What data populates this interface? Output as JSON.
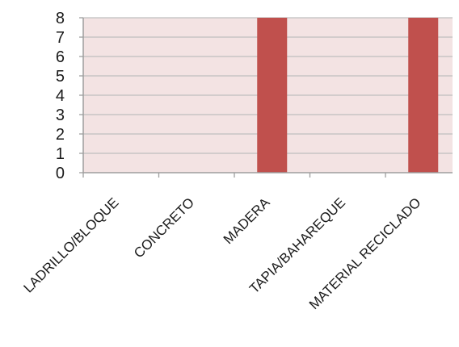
{
  "chart_data": {
    "type": "bar",
    "categories": [
      "LADRILLO/BLOQUE",
      "CONCRETO",
      "MADERA",
      "TAPIA/BAHAREQUE",
      "MATERIAL RECICLADO"
    ],
    "values": [
      0,
      0,
      8,
      0,
      8
    ],
    "ylim": [
      0,
      8
    ],
    "yticks": [
      "0",
      "1",
      "2",
      "3",
      "4",
      "5",
      "6",
      "7",
      "8"
    ],
    "grid": true,
    "legend": "none",
    "colors": {
      "plot_background": "#f3e3e3",
      "bar": "#c0504d",
      "gridline": "#bfbfbf",
      "axis": "#9e9e9e"
    }
  }
}
